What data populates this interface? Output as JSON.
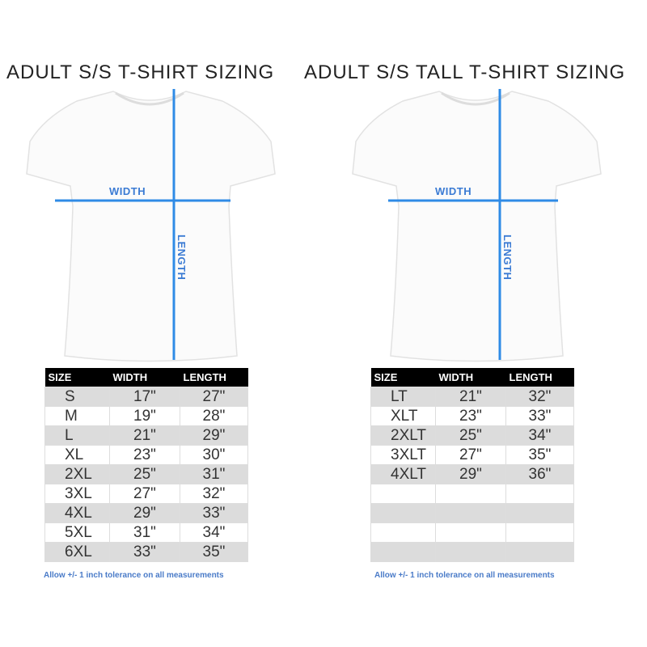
{
  "colors": {
    "measure_line": "#2f8be6",
    "label": "#3b7bd4",
    "header_bg": "#000000",
    "row_alt": "#dcdcdc"
  },
  "left": {
    "title": "ADULT S/S T-SHIRT SIZING",
    "width_label": "WIDTH",
    "length_label": "LENGTH",
    "headers": [
      "SIZE",
      "WIDTH",
      "LENGTH"
    ],
    "rows": [
      [
        "S",
        "17\"",
        "27\""
      ],
      [
        "M",
        "19\"",
        "28\""
      ],
      [
        "L",
        "21\"",
        "29\""
      ],
      [
        "XL",
        "23\"",
        "30\""
      ],
      [
        "2XL",
        "25\"",
        "31\""
      ],
      [
        "3XL",
        "27\"",
        "32\""
      ],
      [
        "4XL",
        "29\"",
        "33\""
      ],
      [
        "5XL",
        "31\"",
        "34\""
      ],
      [
        "6XL",
        "33\"",
        "35\""
      ]
    ],
    "note": "Allow +/- 1 inch tolerance on all measurements"
  },
  "right": {
    "title": "ADULT S/S TALL T-SHIRT SIZING",
    "width_label": "WIDTH",
    "length_label": "LENGTH",
    "headers": [
      "SIZE",
      "WIDTH",
      "LENGTH"
    ],
    "rows": [
      [
        "LT",
        "21\"",
        "32\""
      ],
      [
        "XLT",
        "23\"",
        "33\""
      ],
      [
        "2XLT",
        "25\"",
        "34\""
      ],
      [
        "3XLT",
        "27\"",
        "35\""
      ],
      [
        "4XLT",
        "29\"",
        "36\""
      ],
      [
        "",
        "",
        ""
      ],
      [
        "",
        "",
        ""
      ],
      [
        "",
        "",
        ""
      ],
      [
        "",
        "",
        ""
      ]
    ],
    "note": "Allow +/- 1 inch tolerance on all measurements"
  }
}
